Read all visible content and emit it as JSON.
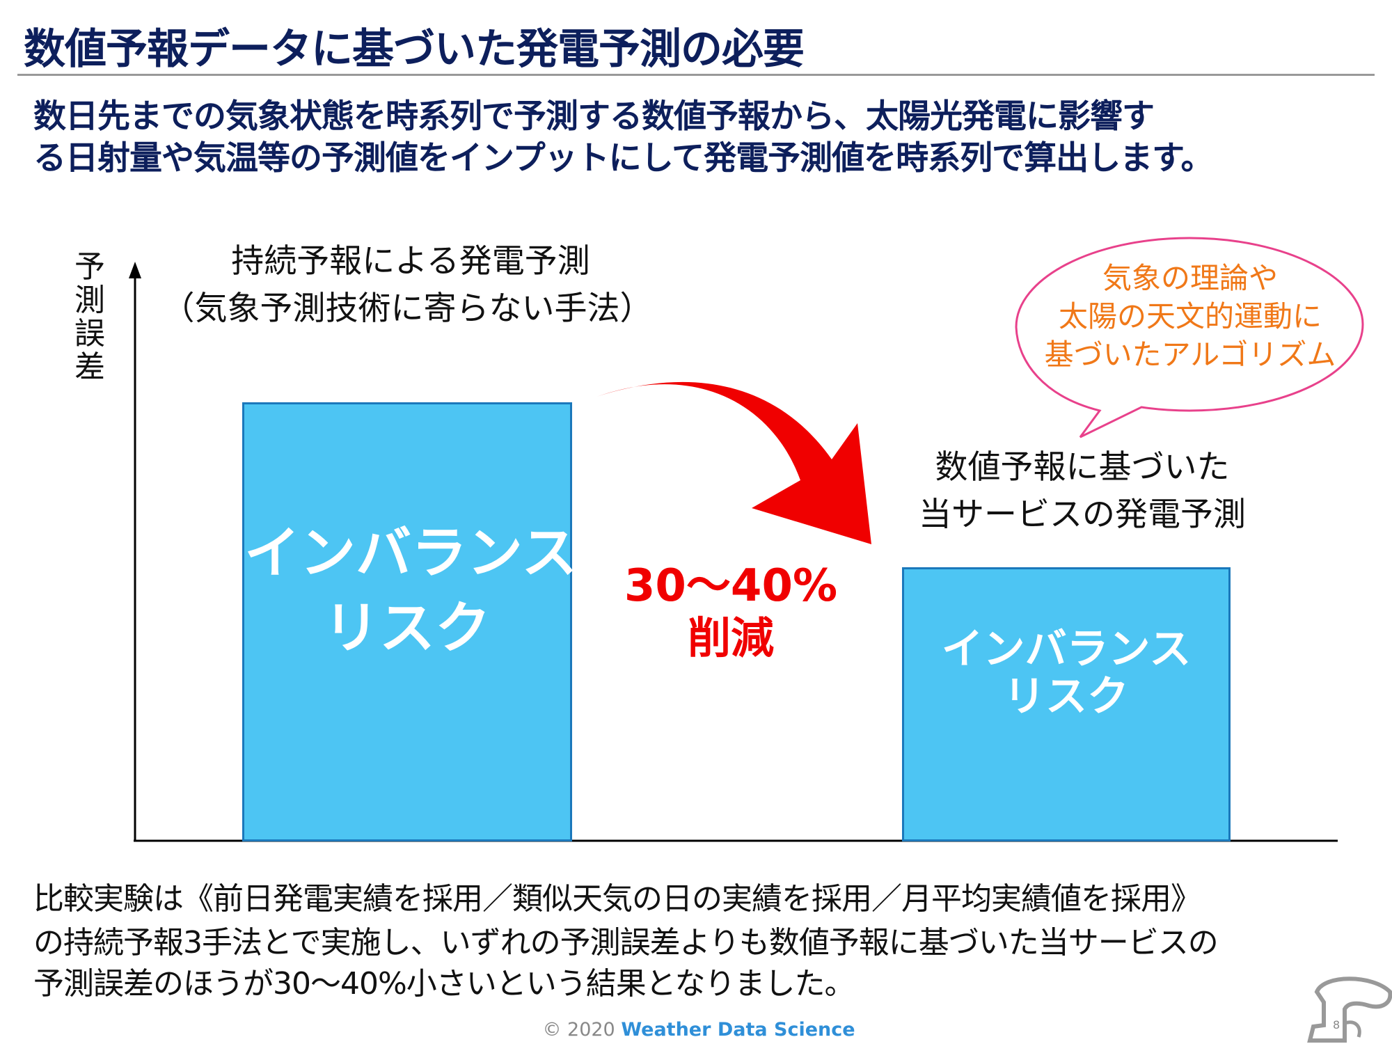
{
  "title": "数値予報データに基づいた発電予測の必要",
  "lead": [
    "数日先までの気象状態を時系列で予測する数値予報から、太陽光発電に影響す",
    "る日射量や気温等の予測値をインプットにして発電予測値を時系列で算出します。"
  ],
  "chart": {
    "y_axis_label": "予測誤差",
    "left": {
      "label_lines": [
        "持続予報による発電予測",
        "（気象予測技術に寄らない手法）"
      ],
      "bar_text": [
        "インバランス",
        "リスク"
      ]
    },
    "right": {
      "label_lines": [
        "数値予報に基づいた",
        "当サービスの発電予測"
      ],
      "bar_text": [
        "インバランス",
        "リスク"
      ]
    },
    "reduction": [
      "30～40%",
      "削減"
    ],
    "bubble_lines": [
      "気象の理論や",
      "太陽の天文的運動に",
      "基づいたアルゴリズム"
    ],
    "colors": {
      "bar": "#4dc5f3",
      "bar_border": "#1b78bb",
      "arrow": "#f00000",
      "bubble_border": "#e8418b",
      "bubble_text": "#f07818"
    }
  },
  "bottom": [
    "比較実験は《前日発電実績を採用／類似天気の日の実績を採用／月平均実績値を採用》",
    "の持続予報3手法とで実施し、いずれの予測誤差よりも数値予報に基づいた当サービスの",
    "予測誤差のほうが30～40%小さいという結果となりました。"
  ],
  "footer": {
    "copyright": "© 2020",
    "brand": "Weather Data Science"
  },
  "page_number": "8"
}
